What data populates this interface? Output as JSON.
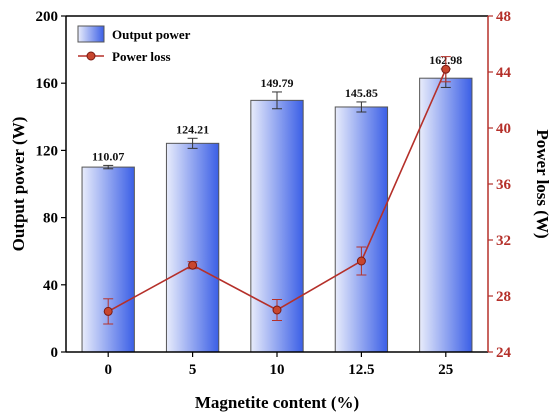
{
  "chart_data": {
    "type": "bar+line",
    "categories": [
      "0",
      "5",
      "10",
      "12.5",
      "25"
    ],
    "xlabel": "Magnetite content (%)",
    "series": [
      {
        "name": "Output power",
        "type": "bar",
        "axis": "left",
        "values": [
          110.07,
          124.21,
          149.79,
          145.85,
          162.98
        ],
        "value_labels": [
          "110.07",
          "124.21",
          "149.79",
          "145.85",
          "162.98"
        ],
        "error": [
          1.0,
          3.0,
          5.0,
          3.0,
          5.5
        ],
        "color_light": "#e8ecfb",
        "color_dark": "#3b5fe6"
      },
      {
        "name": "Power loss",
        "type": "line",
        "axis": "right",
        "values": [
          26.9,
          30.2,
          27.0,
          30.5,
          44.2
        ],
        "error": [
          0.9,
          0.25,
          0.75,
          1.0,
          0.9
        ],
        "color": "#b5302a"
      }
    ],
    "y_left": {
      "label": "Output power (W)",
      "lim": [
        0,
        200
      ],
      "ticks": [
        "0",
        "40",
        "80",
        "120",
        "160",
        "200"
      ]
    },
    "y_right": {
      "label": "Power loss (W)",
      "lim": [
        24,
        48
      ],
      "ticks": [
        "24",
        "28",
        "32",
        "36",
        "40",
        "44",
        "48"
      ],
      "color": "#b5302a"
    },
    "legend_position": "top-left",
    "grid": false
  }
}
